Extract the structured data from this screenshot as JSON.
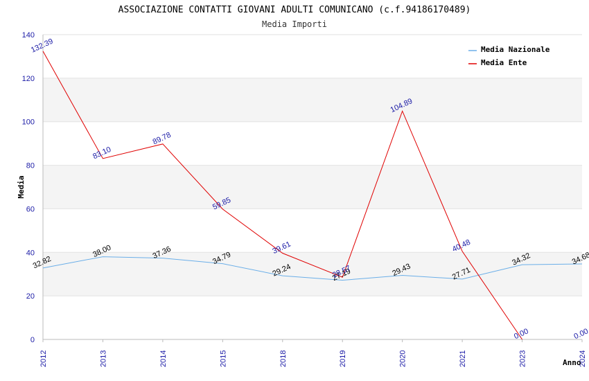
{
  "chart_data": {
    "type": "line",
    "title": "ASSOCIAZIONE CONTATTI GIOVANI ADULTI COMUNICANO (c.f.94186170489)",
    "subtitle": "Media Importi",
    "xlabel": "Anno",
    "ylabel": "Media",
    "ylim": [
      0,
      140
    ],
    "yticks": [
      0,
      20,
      40,
      60,
      80,
      100,
      120,
      140
    ],
    "categories": [
      "2012",
      "2013",
      "2014",
      "2015",
      "2018",
      "2019",
      "2020",
      "2021",
      "2023",
      "2024"
    ],
    "grid": true,
    "legend_position": "top-right",
    "series": [
      {
        "name": "Media Nazionale",
        "color": "#6aaee8",
        "values": [
          32.82,
          38.0,
          37.36,
          34.79,
          29.24,
          27.19,
          29.43,
          27.71,
          34.32,
          34.68
        ],
        "labels": [
          "32.82",
          "38.00",
          "37.36",
          "34.79",
          "29.24",
          "27.19",
          "29.43",
          "27.71",
          "34.32",
          "34.68"
        ]
      },
      {
        "name": "Media Ente",
        "color": "#e00000",
        "values": [
          132.39,
          83.1,
          89.78,
          59.85,
          39.61,
          28.57,
          104.89,
          40.48,
          0.0,
          null
        ],
        "labels": [
          "132.39",
          "83.10",
          "89.78",
          "59.85",
          "39.61",
          "28.57",
          "104.89",
          "40.48",
          "0.00",
          "0.00"
        ]
      }
    ]
  }
}
